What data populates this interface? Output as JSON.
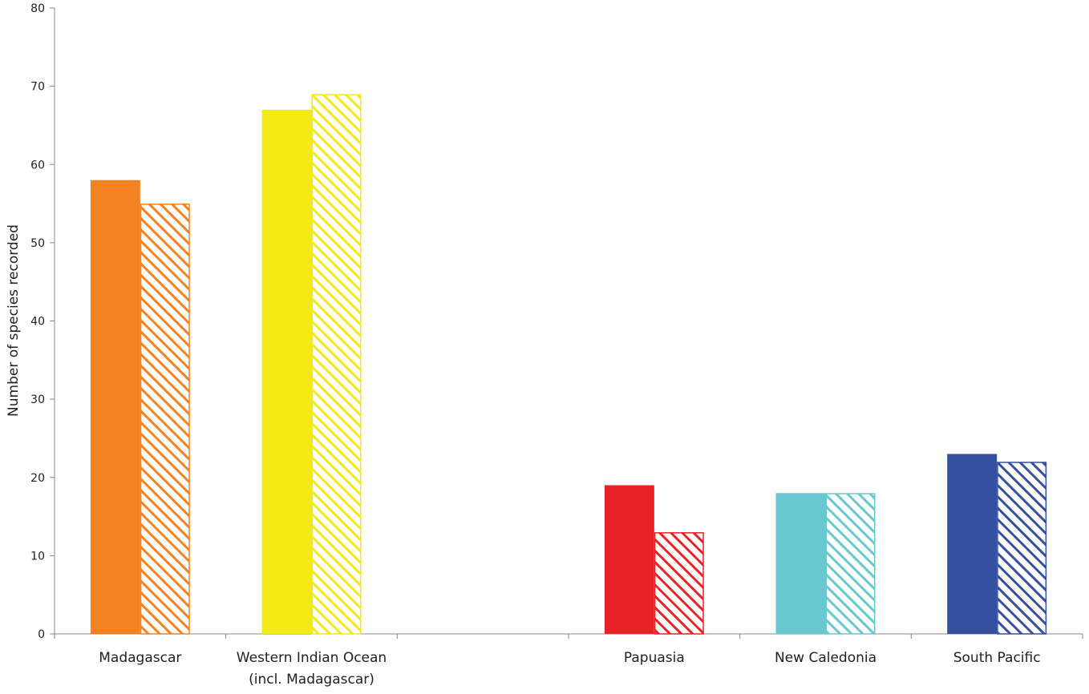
{
  "chart_data": {
    "type": "bar",
    "title": "",
    "xlabel": "",
    "ylabel": "Number of species recorded",
    "ylim": [
      0,
      80
    ],
    "yticks": [
      0,
      10,
      20,
      30,
      40,
      50,
      60,
      70,
      80
    ],
    "grid": false,
    "legend": "none",
    "categories": [
      {
        "lines": [
          "Madagascar"
        ],
        "color": "#F58220"
      },
      {
        "lines": [
          "Western Indian Ocean",
          "(incl. Madagascar)"
        ],
        "color": "#F3E914"
      },
      {
        "lines": [],
        "color": "#ffffff"
      },
      {
        "lines": [
          "Papuasia"
        ],
        "color": "#E92226"
      },
      {
        "lines": [
          "New Caledonia"
        ],
        "color": "#68C8D0"
      },
      {
        "lines": [
          "South Pacific"
        ],
        "color": "#3550A1"
      }
    ],
    "series": [
      {
        "style": "solid",
        "values": [
          58,
          67,
          null,
          19,
          18,
          23
        ]
      },
      {
        "style": "hatched",
        "values": [
          55,
          69,
          null,
          13,
          18,
          22
        ]
      }
    ]
  }
}
